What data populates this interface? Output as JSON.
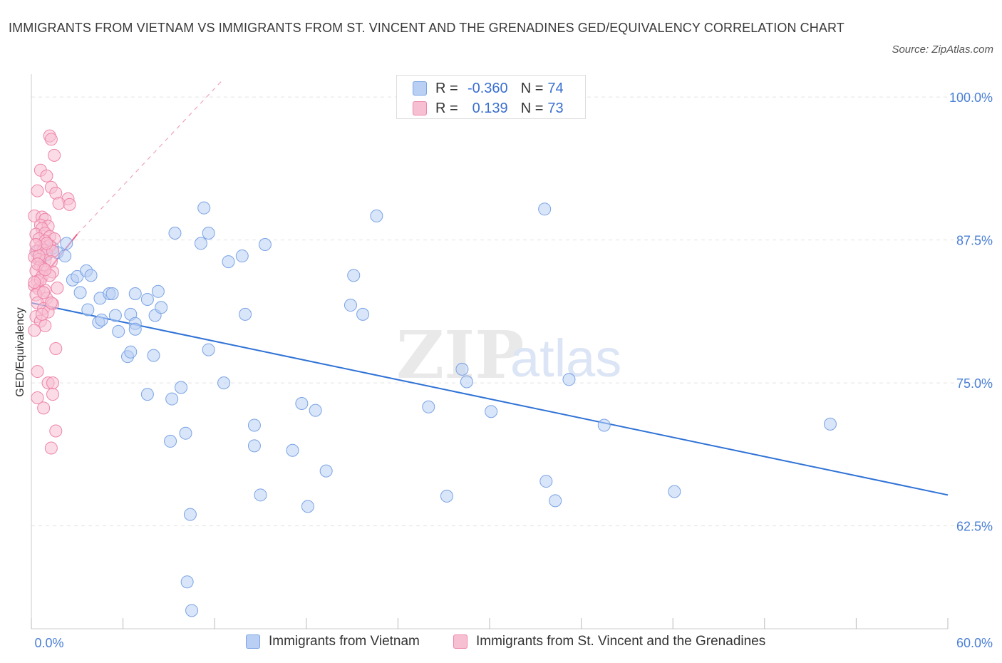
{
  "title": "IMMIGRANTS FROM VIETNAM VS IMMIGRANTS FROM ST. VINCENT AND THE GRENADINES GED/EQUIVALENCY CORRELATION CHART",
  "source": "Source: ZipAtlas.com",
  "colors": {
    "blue_fill": "#b9d0f4",
    "blue_stroke": "#7aa3e5",
    "blue_line": "#2f72d6",
    "pink_fill": "#f7c0d2",
    "pink_stroke": "#ee85a8",
    "pink_line": "#e8618c",
    "axis_text": "#4a7fd6",
    "grid": "#e3e3e3"
  },
  "legend": {
    "rows": [
      {
        "r_label": "R =",
        "r_value": "-0.360",
        "n_label": "N =",
        "n_value": "74"
      },
      {
        "r_label": "R =",
        "r_value": "0.139",
        "n_label": "N =",
        "n_value": "73"
      }
    ]
  },
  "bottom_legend": {
    "vietnam": "Immigrants from Vietnam",
    "stvincent": "Immigrants from St. Vincent and the Grenadines"
  },
  "watermark": {
    "zip": "ZIP",
    "atlas": "atlas"
  },
  "chart_data": {
    "type": "scatter",
    "title": "IMMIGRANTS FROM VIETNAM VS IMMIGRANTS FROM ST. VINCENT AND THE GRENADINES GED/EQUIVALENCY CORRELATION CHART",
    "xlabel": "",
    "ylabel": "GED/Equivalency",
    "xlim": [
      0,
      60
    ],
    "ylim": [
      53.5,
      102
    ],
    "x_tick_labels": [
      "0.0%",
      "60.0%"
    ],
    "y_ticks": [
      62.5,
      75.0,
      87.5,
      100.0
    ],
    "y_tick_labels": [
      "62.5%",
      "75.0%",
      "87.5%",
      "100.0%"
    ],
    "grid": true,
    "legend_position": "top-center",
    "series": [
      {
        "name": "Immigrants from Vietnam",
        "color": "#b9d0f4",
        "r": -0.36,
        "n": 74,
        "trend": {
          "x": [
            0,
            60
          ],
          "y": [
            82.0,
            65.2
          ]
        },
        "points": [
          [
            0.4,
            86.5
          ],
          [
            0.6,
            85.8
          ],
          [
            0.8,
            86.7
          ],
          [
            1.0,
            86.2
          ],
          [
            1.4,
            86.8
          ],
          [
            1.7,
            86.4
          ],
          [
            2.3,
            87.2
          ],
          [
            2.2,
            86.1
          ],
          [
            2.7,
            84.0
          ],
          [
            3.0,
            84.3
          ],
          [
            3.6,
            84.8
          ],
          [
            3.2,
            82.9
          ],
          [
            3.7,
            81.4
          ],
          [
            3.9,
            84.4
          ],
          [
            4.5,
            82.4
          ],
          [
            4.4,
            80.3
          ],
          [
            4.6,
            80.5
          ],
          [
            5.1,
            82.8
          ],
          [
            5.3,
            82.8
          ],
          [
            5.7,
            79.5
          ],
          [
            5.5,
            80.9
          ],
          [
            6.3,
            77.3
          ],
          [
            6.5,
            77.7
          ],
          [
            6.5,
            81.0
          ],
          [
            6.8,
            80.2
          ],
          [
            6.8,
            79.7
          ],
          [
            6.8,
            82.8
          ],
          [
            7.6,
            82.3
          ],
          [
            8.1,
            80.9
          ],
          [
            8.0,
            77.4
          ],
          [
            8.3,
            83.0
          ],
          [
            8.5,
            81.6
          ],
          [
            9.2,
            73.6
          ],
          [
            9.4,
            88.1
          ],
          [
            9.8,
            74.6
          ],
          [
            9.1,
            69.9
          ],
          [
            10.1,
            70.6
          ],
          [
            10.4,
            63.5
          ],
          [
            11.3,
            90.3
          ],
          [
            11.6,
            88.1
          ],
          [
            11.1,
            87.2
          ],
          [
            11.6,
            77.9
          ],
          [
            12.6,
            75.0
          ],
          [
            13.8,
            86.1
          ],
          [
            14.0,
            81.0
          ],
          [
            14.6,
            71.3
          ],
          [
            14.6,
            69.5
          ],
          [
            15.0,
            65.2
          ],
          [
            15.3,
            87.1
          ],
          [
            17.1,
            69.1
          ],
          [
            17.7,
            73.2
          ],
          [
            18.1,
            64.2
          ],
          [
            18.6,
            72.6
          ],
          [
            19.3,
            67.3
          ],
          [
            21.1,
            84.4
          ],
          [
            20.9,
            81.8
          ],
          [
            21.7,
            81.0
          ],
          [
            22.6,
            89.6
          ],
          [
            26.0,
            72.9
          ],
          [
            27.2,
            65.1
          ],
          [
            28.2,
            76.2
          ],
          [
            28.5,
            75.1
          ],
          [
            30.1,
            72.5
          ],
          [
            33.6,
            90.2
          ],
          [
            33.7,
            66.4
          ],
          [
            34.3,
            64.7
          ],
          [
            35.2,
            75.3
          ],
          [
            37.5,
            71.3
          ],
          [
            42.1,
            65.5
          ],
          [
            52.3,
            71.4
          ],
          [
            10.2,
            57.6
          ],
          [
            10.5,
            55.1
          ],
          [
            7.6,
            74.0
          ],
          [
            12.9,
            85.6
          ]
        ]
      },
      {
        "name": "Immigrants from St. Vincent and the Grenadines",
        "color": "#f7c0d2",
        "r": 0.139,
        "n": 73,
        "trend": {
          "x": [
            0.0,
            3.0
          ],
          "y": [
            83.0,
            88.0
          ]
        },
        "points": [
          [
            1.2,
            96.6
          ],
          [
            1.3,
            96.3
          ],
          [
            1.5,
            94.9
          ],
          [
            0.6,
            93.6
          ],
          [
            1.0,
            93.1
          ],
          [
            0.4,
            91.8
          ],
          [
            1.3,
            92.1
          ],
          [
            1.6,
            91.6
          ],
          [
            2.4,
            91.1
          ],
          [
            1.8,
            90.7
          ],
          [
            2.5,
            90.6
          ],
          [
            0.2,
            89.6
          ],
          [
            0.7,
            89.5
          ],
          [
            0.9,
            89.3
          ],
          [
            0.6,
            88.8
          ],
          [
            1.1,
            88.7
          ],
          [
            0.7,
            88.5
          ],
          [
            0.3,
            88.0
          ],
          [
            0.9,
            88.1
          ],
          [
            0.5,
            87.6
          ],
          [
            1.2,
            87.8
          ],
          [
            1.5,
            87.6
          ],
          [
            0.9,
            87.4
          ],
          [
            1.2,
            87.0
          ],
          [
            0.6,
            86.9
          ],
          [
            0.3,
            86.5
          ],
          [
            0.8,
            86.6
          ],
          [
            1.0,
            86.3
          ],
          [
            1.4,
            86.5
          ],
          [
            0.2,
            86.0
          ],
          [
            0.5,
            85.8
          ],
          [
            0.9,
            85.7
          ],
          [
            1.3,
            85.6
          ],
          [
            0.6,
            85.2
          ],
          [
            0.8,
            85.0
          ],
          [
            0.3,
            84.8
          ],
          [
            1.4,
            84.7
          ],
          [
            0.7,
            84.3
          ],
          [
            0.4,
            83.9
          ],
          [
            0.2,
            83.5
          ],
          [
            0.5,
            83.2
          ],
          [
            0.9,
            83.1
          ],
          [
            0.3,
            82.7
          ],
          [
            1.0,
            82.4
          ],
          [
            0.4,
            82.0
          ],
          [
            1.4,
            81.9
          ],
          [
            0.8,
            81.5
          ],
          [
            1.1,
            81.2
          ],
          [
            0.3,
            80.8
          ],
          [
            0.6,
            80.4
          ],
          [
            0.9,
            80.0
          ],
          [
            0.2,
            79.6
          ],
          [
            1.6,
            78.0
          ],
          [
            0.4,
            76.0
          ],
          [
            1.1,
            75.0
          ],
          [
            1.4,
            75.0
          ],
          [
            1.4,
            74.0
          ],
          [
            0.4,
            73.7
          ],
          [
            0.8,
            72.8
          ],
          [
            1.6,
            70.8
          ],
          [
            1.3,
            69.3
          ],
          [
            1.7,
            83.3
          ],
          [
            0.6,
            84.0
          ],
          [
            1.2,
            84.4
          ],
          [
            0.5,
            86.1
          ],
          [
            1.0,
            87.2
          ],
          [
            0.2,
            83.8
          ],
          [
            0.8,
            82.9
          ],
          [
            0.4,
            85.4
          ],
          [
            1.3,
            82.0
          ],
          [
            0.7,
            81.0
          ],
          [
            0.3,
            87.1
          ],
          [
            0.9,
            84.9
          ]
        ]
      }
    ]
  }
}
